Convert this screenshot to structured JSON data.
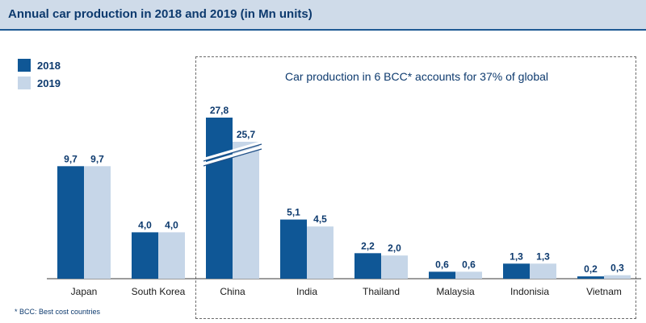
{
  "header": {
    "title": "Annual car production in 2018 and 2019 (in Mn units)"
  },
  "callout": {
    "text": "Car production in 6 BCC* accounts for 37% of global"
  },
  "footnote": "* BCC: Best cost countries",
  "colors": {
    "series_2018": "#0f5796",
    "series_2019": "#c6d6e8",
    "header_bg": "#cfdbe9",
    "text": "#0d3a6e"
  },
  "chart_data": {
    "type": "bar",
    "title": "Annual car production in 2018 and 2019 (in Mn units)",
    "categories": [
      "Japan",
      "South Korea",
      "China",
      "India",
      "Thailand",
      "Malaysia",
      "Indonisia",
      "Vietnam"
    ],
    "series": [
      {
        "name": "2018",
        "values": [
          9.7,
          4.0,
          27.8,
          5.1,
          2.2,
          0.6,
          1.3,
          0.2
        ],
        "labels": [
          "9,7",
          "4,0",
          "27,8",
          "5,1",
          "2,2",
          "0,6",
          "1,3",
          "0,2"
        ]
      },
      {
        "name": "2019",
        "values": [
          9.7,
          4.0,
          25.7,
          4.5,
          2.0,
          0.6,
          1.3,
          0.3
        ],
        "labels": [
          "9,7",
          "4,0",
          "25,7",
          "4,5",
          "2,0",
          "0,6",
          "1,3",
          "0,3"
        ]
      }
    ],
    "axis_break": {
      "category": "China"
    },
    "legend": "top-left",
    "grid": false,
    "xlabel": "",
    "ylabel": ""
  }
}
